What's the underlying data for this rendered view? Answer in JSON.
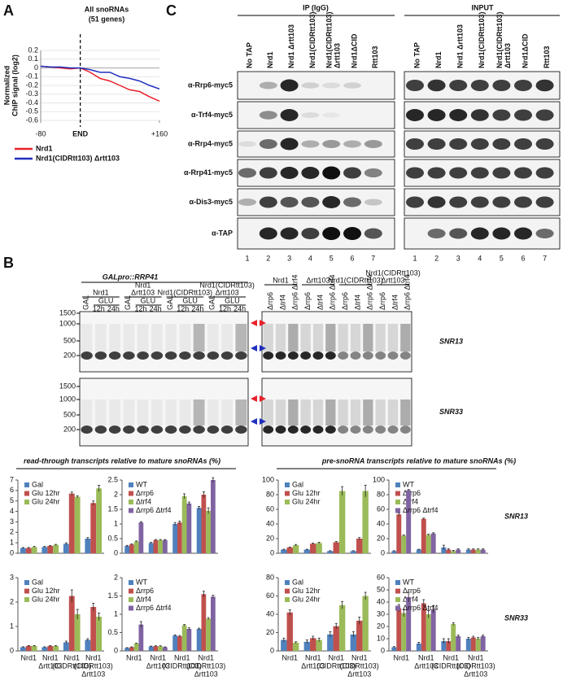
{
  "panel_labels": [
    "A",
    "B",
    "C"
  ],
  "chart_data": [
    {
      "type": "line",
      "title": [
        "All snoRNAs",
        "(51 genes)"
      ],
      "ylabel": [
        "Normalized",
        "ChIP signal (log2)"
      ],
      "x": [
        -80,
        -60,
        -40,
        -20,
        0,
        20,
        40,
        60,
        80,
        100,
        120,
        140,
        160
      ],
      "series": [
        {
          "name": "Nrd1",
          "color": "#e8202a",
          "values": [
            0.02,
            0.01,
            0.0,
            -0.01,
            0.0,
            -0.05,
            -0.12,
            -0.15,
            -0.2,
            -0.25,
            -0.27,
            -0.33,
            -0.38
          ]
        },
        {
          "name": "Nrd1(CIDRtt103) Δrtt103",
          "color": "#1f2fbf",
          "values": [
            0.02,
            0.01,
            0.01,
            0.0,
            0.0,
            -0.02,
            -0.05,
            -0.05,
            -0.1,
            -0.12,
            -0.15,
            -0.2,
            -0.24
          ]
        }
      ],
      "xlim": [
        -80,
        160
      ],
      "xticks": [
        -80,
        {
          "value": 0,
          "label": "END"
        },
        {
          "value": 160,
          "label": "+160"
        }
      ],
      "reference_line": 0,
      "ylim": [
        -0.6,
        0.2
      ],
      "yticks": [
        0.2,
        0.1,
        0,
        -0.1,
        -0.2,
        -0.3,
        -0.4,
        -0.5,
        -0.6
      ],
      "grid": true,
      "legend": "bottom"
    },
    {
      "type": "bar",
      "categories": [
        null,
        null,
        null,
        null
      ],
      "legend": "upper left",
      "ylim": [
        0,
        7
      ],
      "yticks": [
        0,
        1,
        2,
        3,
        4,
        5,
        6,
        7
      ],
      "series": [
        {
          "name": "Gal",
          "color": "#4f81bd",
          "values": [
            0.5,
            0.6,
            0.9,
            1.4
          ],
          "errors": [
            0.05,
            0.05,
            0.1,
            0.1
          ]
        },
        {
          "name": "Glu 12hr",
          "color": "#c0504d",
          "values": [
            0.5,
            0.7,
            5.7,
            4.8
          ],
          "errors": [
            0.05,
            0.05,
            0.15,
            0.2
          ]
        },
        {
          "name": "Glu 24hr",
          "color": "#9bbb59",
          "values": [
            0.6,
            0.8,
            5.4,
            6.2
          ],
          "errors": [
            0.05,
            0.05,
            0.1,
            0.3
          ]
        }
      ]
    },
    {
      "type": "bar",
      "categories": [
        null,
        null,
        null,
        null
      ],
      "legend": "upper left",
      "ylim": [
        0,
        2.5
      ],
      "yticks": [
        0,
        0.5,
        1,
        1.5,
        2,
        2.5
      ],
      "series": [
        {
          "name": "WT",
          "color": "#4f81bd",
          "values": [
            0.25,
            0.35,
            1.0,
            1.55
          ],
          "errors": [
            0.02,
            0.02,
            0.05,
            0.05
          ]
        },
        {
          "name": "Δrrp6",
          "color": "#c0504d",
          "values": [
            0.3,
            0.45,
            1.05,
            2.0
          ],
          "errors": [
            0.02,
            0.02,
            0.05,
            0.1
          ]
        },
        {
          "name": "Δtrf4",
          "color": "#9bbb59",
          "values": [
            0.4,
            0.45,
            1.95,
            1.45
          ],
          "errors": [
            0.02,
            0.02,
            0.08,
            0.1
          ]
        },
        {
          "name": "Δrrp6 Δtrf4",
          "color": "#8064a2",
          "values": [
            1.05,
            0.45,
            1.7,
            2.5
          ],
          "errors": [
            0.03,
            0.02,
            0.05,
            0.08
          ]
        }
      ]
    },
    {
      "type": "bar",
      "categories": [
        null,
        null,
        null,
        null
      ],
      "legend": "upper left",
      "ylim": [
        0,
        100
      ],
      "yticks": [
        0,
        20,
        40,
        60,
        80,
        100
      ],
      "series": [
        {
          "name": "Gal",
          "color": "#4f81bd",
          "values": [
            5,
            5,
            3,
            3
          ],
          "errors": [
            0.5,
            0.5,
            0.5,
            0.5
          ]
        },
        {
          "name": "Glu 12hr",
          "color": "#c0504d",
          "values": [
            8,
            13,
            15,
            20
          ],
          "errors": [
            0.5,
            1,
            1,
            1.5
          ]
        },
        {
          "name": "Glu 24hr",
          "color": "#9bbb59",
          "values": [
            11,
            14,
            85,
            85
          ],
          "errors": [
            1,
            1,
            6,
            8
          ]
        }
      ]
    },
    {
      "type": "bar",
      "categories": [
        null,
        null,
        null,
        null
      ],
      "legend": "upper left",
      "ylim": [
        0,
        100
      ],
      "yticks": [
        0,
        20,
        40,
        60,
        80,
        100
      ],
      "series": [
        {
          "name": "WT",
          "color": "#4f81bd",
          "values": [
            3,
            5,
            8,
            5
          ],
          "errors": [
            0.5,
            0.5,
            3,
            1
          ]
        },
        {
          "name": "Δrrp6",
          "color": "#c0504d",
          "values": [
            53,
            47,
            5,
            5
          ],
          "errors": [
            2,
            1,
            1,
            1
          ]
        },
        {
          "name": "Δtrf4",
          "color": "#9bbb59",
          "values": [
            24,
            25,
            3,
            5
          ],
          "errors": [
            1,
            1,
            1,
            1
          ]
        },
        {
          "name": "Δrrp6 Δtrf4",
          "color": "#8064a2",
          "values": [
            86,
            27,
            5,
            5
          ],
          "errors": [
            1,
            1,
            1,
            1
          ]
        }
      ]
    },
    {
      "type": "bar",
      "categories": [
        [
          "Nrd1"
        ],
        [
          "Nrd1",
          "Δrtt103"
        ],
        [
          "Nrd1",
          "(CIDRtt103)"
        ],
        [
          "Nrd1",
          "(CIDRtt103)",
          "Δrtt103"
        ]
      ],
      "legend": "upper left",
      "ylim": [
        0,
        3
      ],
      "yticks": [
        0,
        1,
        2,
        3
      ],
      "series": [
        {
          "name": "Gal",
          "color": "#4f81bd",
          "values": [
            0.15,
            0.15,
            0.35,
            0.45
          ],
          "errors": [
            0.02,
            0.02,
            0.05,
            0.05
          ]
        },
        {
          "name": "Glu 12hr",
          "color": "#c0504d",
          "values": [
            0.2,
            0.2,
            2.25,
            1.8
          ],
          "errors": [
            0.02,
            0.02,
            0.25,
            0.15
          ]
        },
        {
          "name": "Glu 24hr",
          "color": "#9bbb59",
          "values": [
            0.2,
            0.2,
            1.5,
            1.4
          ],
          "errors": [
            0.02,
            0.02,
            0.2,
            0.15
          ]
        }
      ]
    },
    {
      "type": "bar",
      "categories": [
        [
          "Nrd1"
        ],
        [
          "Nrd1",
          "Δrtt103"
        ],
        [
          "Nrd1",
          "(CIDRtt103)"
        ],
        [
          "Nrd1",
          "(CIDRtt103)",
          "Δrtt103"
        ]
      ],
      "legend": "upper left",
      "ylim": [
        0,
        2
      ],
      "yticks": [
        0,
        0.5,
        1,
        1.5,
        2
      ],
      "series": [
        {
          "name": "WT",
          "color": "#4f81bd",
          "values": [
            0.08,
            0.12,
            0.42,
            0.6
          ],
          "errors": [
            0.01,
            0.01,
            0.02,
            0.02
          ]
        },
        {
          "name": "Δrrp6",
          "color": "#c0504d",
          "values": [
            0.1,
            0.13,
            0.4,
            1.55
          ],
          "errors": [
            0.01,
            0.01,
            0.02,
            0.08
          ]
        },
        {
          "name": "Δtrf4",
          "color": "#9bbb59",
          "values": [
            0.2,
            0.13,
            0.7,
            0.88
          ],
          "errors": [
            0.01,
            0.01,
            0.02,
            0.03
          ]
        },
        {
          "name": "Δrrp6 Δtrf4",
          "color": "#8064a2",
          "values": [
            0.72,
            0.1,
            0.6,
            1.48
          ],
          "errors": [
            0.08,
            0.01,
            0.03,
            0.04
          ]
        }
      ]
    },
    {
      "type": "bar",
      "categories": [
        [
          "Nrd1"
        ],
        [
          "Nrd1",
          "Δrtt103"
        ],
        [
          "Nrd1",
          "(CIDRtt103)"
        ],
        [
          "Nrd1",
          "(CIDRtt103)",
          "Δrtt103"
        ]
      ],
      "legend": "upper left",
      "ylim": [
        0,
        80
      ],
      "yticks": [
        0,
        20,
        40,
        60,
        80
      ],
      "series": [
        {
          "name": "Gal",
          "color": "#4f81bd",
          "values": [
            12,
            10,
            18,
            18
          ],
          "errors": [
            2,
            2,
            3,
            3
          ]
        },
        {
          "name": "Glu 12hr",
          "color": "#c0504d",
          "values": [
            42,
            14,
            27,
            33
          ],
          "errors": [
            3,
            2,
            3,
            4
          ]
        },
        {
          "name": "Glu 24hr",
          "color": "#9bbb59",
          "values": [
            9,
            12,
            50,
            60
          ],
          "errors": [
            1,
            2,
            4,
            4
          ]
        }
      ]
    },
    {
      "type": "bar",
      "categories": [
        [
          "Nrd1"
        ],
        [
          "Nrd1",
          "Δrtt103"
        ],
        [
          "Nrd1",
          "(CIDRtt103)"
        ],
        [
          "Nrd1",
          "(CIDRtt103)",
          "Δrtt103"
        ]
      ],
      "legend": "upper left",
      "ylim": [
        0,
        60
      ],
      "yticks": [
        0,
        10,
        20,
        30,
        40,
        50,
        60
      ],
      "series": [
        {
          "name": "WT",
          "color": "#4f81bd",
          "values": [
            3,
            6,
            8,
            10
          ],
          "errors": [
            0.5,
            1,
            2,
            1
          ]
        },
        {
          "name": "Δrrp6",
          "color": "#c0504d",
          "values": [
            35,
            39,
            8,
            11
          ],
          "errors": [
            3,
            3,
            2,
            1
          ]
        },
        {
          "name": "Δtrf4",
          "color": "#9bbb59",
          "values": [
            31,
            30,
            22,
            10
          ],
          "errors": [
            3,
            3,
            1,
            1
          ]
        },
        {
          "name": "Δrrp6 Δtrf4",
          "color": "#8064a2",
          "values": [
            44,
            34,
            12,
            12
          ],
          "errors": [
            4,
            3,
            1,
            1
          ]
        }
      ]
    }
  ],
  "blot": {
    "header_ip": "IP (IgG)",
    "header_input": "INPUT",
    "lanes": [
      [
        "No TAP"
      ],
      [
        "Nrd1"
      ],
      [
        "Nrd1 Δrtt103"
      ],
      [
        "Nrd1(CIDRtt103)"
      ],
      [
        "Nrd1(CIDRtt103)",
        "Δrtt103"
      ],
      [
        "Nrd1ΔCID"
      ],
      [
        "Rtt103"
      ]
    ],
    "rows": [
      "α-Rrp6-myc5",
      "α-Trf4-myc5",
      "α-Rrp4-myc5",
      "α-Rrp41-myc5",
      "α-Dis3-myc5",
      "α-TAP"
    ],
    "lane_numbers": [
      1,
      2,
      3,
      4,
      5,
      6,
      7
    ]
  },
  "gel": {
    "title": "GALpro::RRP41",
    "left_groups": [
      [
        "Nrd1"
      ],
      [
        "Nrd1",
        "Δrtt103"
      ],
      [
        "Nrd1(CIDRtt103)"
      ],
      [
        "Nrd1(CIDRtt103)",
        "Δrtt103"
      ]
    ],
    "left_lanes": {
      "gal": "GAL",
      "glu": "GLU",
      "early": "12h",
      "late": "24h"
    },
    "right_groups": [
      [
        "Nrd1"
      ],
      [
        "Δrtt103"
      ],
      [
        "Nrd1(CIDRtt103)"
      ],
      [
        "Nrd1(CIDRtt103)",
        "Δrtt103"
      ]
    ],
    "right_lanes": [
      "Δrrp6",
      "Δtrf4",
      "Δrrp6 Δtrf4"
    ],
    "markers": [
      1500,
      1000,
      500,
      200
    ],
    "genes": [
      "SNR13",
      "SNR33"
    ]
  },
  "quantification": {
    "headings": [
      "read-through transcripts relative to mature snoRNAs (%)",
      "pre-snoRNA transcripts relative to mature snoRNAs (%)"
    ],
    "row_labels": [
      "SNR13",
      "SNR33"
    ]
  }
}
